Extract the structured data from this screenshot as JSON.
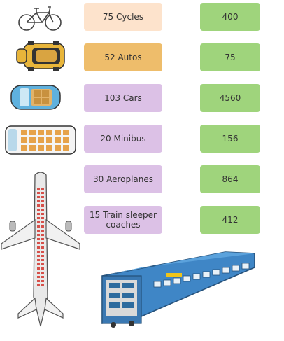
{
  "colors": {
    "cycles": "#fde3cc",
    "autos": "#eebd6b",
    "purple": "#dcc1e6",
    "green": "#9fd47c"
  },
  "rows": [
    {
      "label": "75 Cycles",
      "value": "400",
      "icon": "bicycle-icon"
    },
    {
      "label": "52 Autos",
      "value": "75",
      "icon": "auto-rickshaw-icon"
    },
    {
      "label": "103 Cars",
      "value": "4560",
      "icon": "car-icon"
    },
    {
      "label": "20 Minibus",
      "value": "156",
      "icon": "minibus-icon"
    },
    {
      "label": "30 Aeroplanes",
      "value": "864",
      "icon": "aeroplane-icon"
    },
    {
      "label": "15 Train sleeper coaches",
      "value": "412",
      "icon": "train-icon"
    }
  ]
}
